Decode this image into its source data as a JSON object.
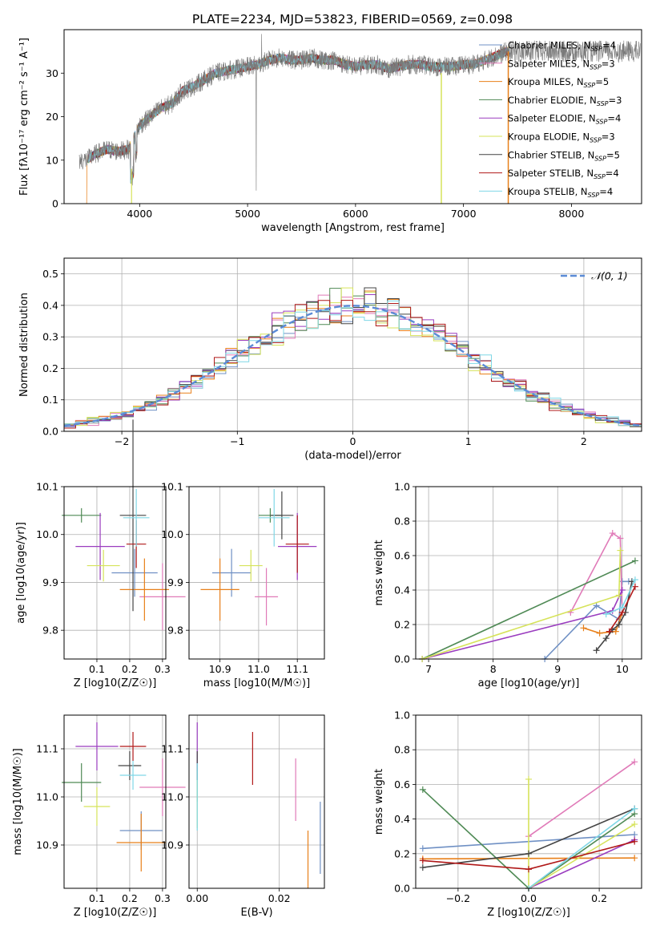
{
  "figure": {
    "title": "PLATE=2234, MJD=53823, FIBERID=0569, z=0.098"
  },
  "series_styles": [
    {
      "name": "Chabrier MILES",
      "nssp": "4",
      "color": "#6f90c4"
    },
    {
      "name": "Salpeter MILES",
      "nssp": "3",
      "color": "#e07ab8"
    },
    {
      "name": "Kroupa MILES",
      "nssp": "5",
      "color": "#e8801a"
    },
    {
      "name": "Chabrier ELODIE",
      "nssp": "3",
      "color": "#4f8a55"
    },
    {
      "name": "Salpeter ELODIE",
      "nssp": "4",
      "color": "#9a3cbf"
    },
    {
      "name": "Kroupa ELODIE",
      "nssp": "3",
      "color": "#d6e35a"
    },
    {
      "name": "Chabrier STELIB",
      "nssp": "5",
      "color": "#444444"
    },
    {
      "name": "Salpeter STELIB",
      "nssp": "4",
      "color": "#b01818"
    },
    {
      "name": "Kroupa STELIB",
      "nssp": "4",
      "color": "#7fd7e6"
    }
  ],
  "chart_data": [
    {
      "id": "spectrum",
      "type": "line",
      "xlabel": "wavelength [Angstrom, rest frame]",
      "ylabel": "Flux [fλ10⁻¹⁷ erg cm⁻² s⁻¹ A⁻¹]",
      "xlim": [
        3300,
        8650
      ],
      "ylim": [
        0,
        40
      ],
      "xticks": [
        4000,
        5000,
        6000,
        7000,
        8000
      ],
      "yticks": [
        0,
        10,
        20,
        30
      ],
      "legend_position": "top-right",
      "observed_flux": {
        "x": [
          3500,
          3600,
          3700,
          3800,
          3900,
          4000,
          4100,
          4200,
          4300,
          4400,
          4500,
          4600,
          4700,
          4800,
          4900,
          5000,
          5100,
          5200,
          5300,
          5400,
          5500,
          5600,
          5700,
          5800,
          5900,
          6000,
          6100,
          6200,
          6300,
          6400,
          6500,
          6600,
          6700,
          6800,
          6900,
          7000,
          7100,
          7200,
          7300,
          7400
        ],
        "y": [
          10,
          11.5,
          12.5,
          12,
          12.5,
          18,
          20,
          22,
          23,
          26,
          27,
          28.5,
          30,
          30.5,
          31,
          31.5,
          32,
          33,
          33.5,
          33,
          33,
          33.5,
          33,
          33,
          32,
          31.5,
          32,
          32,
          31,
          31.5,
          32,
          32,
          31.5,
          31.5,
          31.5,
          32,
          32,
          33,
          34,
          35
        ]
      }
    },
    {
      "id": "residuals",
      "type": "bar",
      "xlabel": "(data-model)/error",
      "ylabel": "Normed distribution",
      "xlim": [
        -2.5,
        2.5
      ],
      "ylim": [
        0,
        0.55
      ],
      "xticks": [
        -2,
        -1,
        0,
        1,
        2
      ],
      "yticks": [
        0,
        0.1,
        0.2,
        0.3,
        0.4,
        0.5
      ],
      "legend": "𝒩(0, 1)",
      "legend_position": "top-right",
      "bin_edges_start": -2.5,
      "bin_width": 0.1,
      "normal_curve": {
        "mean": 0,
        "sigma": 1
      }
    },
    {
      "id": "age-vs-metallicity",
      "type": "scatter",
      "xlabel": "Z [log10(Z/Z☉)]",
      "ylabel": "age  [log10(age/yr)]",
      "xlim": [
        0,
        0.31
      ],
      "ylim": [
        9.74,
        10.1
      ],
      "xticks": [
        0.1,
        0.2,
        0.3
      ],
      "yticks": [
        9.8,
        9.9,
        10.0,
        10.1
      ],
      "points": [
        {
          "series": "Chabrier MILES",
          "x": 0.215,
          "y": 9.92,
          "xerr": 0.07,
          "yerr": 0.05
        },
        {
          "series": "Salpeter MILES",
          "x": 0.3,
          "y": 9.87,
          "xerr": 0.07,
          "yerr": 0.07
        },
        {
          "series": "Kroupa MILES",
          "x": 0.245,
          "y": 9.885,
          "xerr": 0.075,
          "yerr": 0.065
        },
        {
          "series": "Chabrier ELODIE",
          "x": 0.053,
          "y": 10.04,
          "xerr": 0.06,
          "yerr": 0.015
        },
        {
          "series": "Salpeter ELODIE",
          "x": 0.11,
          "y": 9.975,
          "xerr": 0.075,
          "yerr": 0.07
        },
        {
          "series": "Kroupa ELODIE",
          "x": 0.12,
          "y": 9.935,
          "xerr": 0.05,
          "yerr": 0.033
        },
        {
          "series": "Chabrier STELIB",
          "x": 0.21,
          "y": 10.04,
          "xerr": 0.04,
          "yerr": 0.2
        },
        {
          "series": "Salpeter STELIB",
          "x": 0.22,
          "y": 9.98,
          "xerr": 0.03,
          "yerr": 0.05
        },
        {
          "series": "Kroupa STELIB",
          "x": 0.22,
          "y": 10.035,
          "xerr": 0.04,
          "yerr": 0.06
        }
      ]
    },
    {
      "id": "age-vs-mass",
      "type": "scatter",
      "xlabel": "mass [log10(M/M☉)]",
      "ylabel": "",
      "xlim": [
        10.82,
        11.17
      ],
      "ylim": [
        9.74,
        10.1
      ],
      "xticks": [
        10.9,
        11.0,
        11.1
      ],
      "yticks": [
        9.8,
        9.9,
        10.0,
        10.1
      ],
      "points": [
        {
          "series": "Chabrier MILES",
          "x": 10.93,
          "y": 9.92,
          "xerr": 0.05,
          "yerr": 0.05
        },
        {
          "series": "Salpeter MILES",
          "x": 11.02,
          "y": 9.87,
          "xerr": 0.03,
          "yerr": 0.06
        },
        {
          "series": "Kroupa MILES",
          "x": 10.9,
          "y": 9.885,
          "xerr": 0.05,
          "yerr": 0.065
        },
        {
          "series": "Chabrier ELODIE",
          "x": 11.03,
          "y": 10.04,
          "xerr": 0.03,
          "yerr": 0.015
        },
        {
          "series": "Salpeter ELODIE",
          "x": 11.1,
          "y": 9.975,
          "xerr": 0.05,
          "yerr": 0.07
        },
        {
          "series": "Kroupa ELODIE",
          "x": 10.98,
          "y": 9.935,
          "xerr": 0.03,
          "yerr": 0.033
        },
        {
          "series": "Chabrier STELIB",
          "x": 11.06,
          "y": 10.04,
          "xerr": 0.03,
          "yerr": 0.05
        },
        {
          "series": "Salpeter STELIB",
          "x": 11.1,
          "y": 9.98,
          "xerr": 0.03,
          "yerr": 0.06
        },
        {
          "series": "Kroupa STELIB",
          "x": 11.04,
          "y": 10.035,
          "xerr": 0.04,
          "yerr": 0.06
        }
      ]
    },
    {
      "id": "mass-weight-vs-age",
      "type": "line",
      "xlabel": "age  [log10(age/yr)]",
      "ylabel": "mass weight",
      "xlim": [
        6.8,
        10.3
      ],
      "ylim": [
        0,
        1.0
      ],
      "xticks": [
        7,
        8,
        9,
        10
      ],
      "yticks": [
        0.0,
        0.2,
        0.4,
        0.6,
        0.8,
        1.0
      ],
      "lines": [
        {
          "series": "Chabrier MILES",
          "x": [
            8.8,
            9.6,
            9.95,
            10.0,
            10.1
          ],
          "y": [
            0.0,
            0.31,
            0.23,
            0.45,
            0.45
          ]
        },
        {
          "series": "Salpeter MILES",
          "x": [
            9.2,
            9.85,
            9.97,
            10.0
          ],
          "y": [
            0.27,
            0.73,
            0.7,
            0.27
          ]
        },
        {
          "series": "Kroupa MILES",
          "x": [
            9.4,
            9.65,
            9.9,
            10.0
          ],
          "y": [
            0.18,
            0.15,
            0.16,
            0.27
          ]
        },
        {
          "series": "Chabrier ELODIE",
          "x": [
            6.9,
            10.2
          ],
          "y": [
            0.0,
            0.57
          ]
        },
        {
          "series": "Salpeter ELODIE",
          "x": [
            6.9,
            9.85,
            10.0
          ],
          "y": [
            0.0,
            0.28,
            0.4
          ]
        },
        {
          "series": "Kroupa ELODIE",
          "x": [
            6.9,
            9.95,
            9.97
          ],
          "y": [
            0.0,
            0.37,
            0.63
          ]
        },
        {
          "series": "Chabrier STELIB",
          "x": [
            9.6,
            9.75,
            9.85,
            9.95,
            10.05,
            10.15
          ],
          "y": [
            0.05,
            0.12,
            0.17,
            0.2,
            0.27,
            0.45
          ]
        },
        {
          "series": "Salpeter STELIB",
          "x": [
            9.8,
            10.0,
            10.2
          ],
          "y": [
            0.16,
            0.27,
            0.42
          ]
        },
        {
          "series": "Kroupa STELIB",
          "x": [
            9.75,
            10.0,
            10.2
          ],
          "y": [
            0.26,
            0.3,
            0.46
          ]
        }
      ]
    },
    {
      "id": "mass-vs-metallicity",
      "type": "scatter",
      "xlabel": "Z [log10(Z/Z☉)]",
      "ylabel": "mass [log10(M/M☉)]",
      "xlim": [
        0,
        0.31
      ],
      "ylim": [
        10.81,
        11.17
      ],
      "xticks": [
        0.1,
        0.2,
        0.3
      ],
      "yticks": [
        10.9,
        11.0,
        11.1
      ],
      "points": [
        {
          "series": "Chabrier MILES",
          "x": 0.235,
          "y": 10.93,
          "xerr": 0.065,
          "yerr": 0.04
        },
        {
          "series": "Salpeter MILES",
          "x": 0.3,
          "y": 11.02,
          "xerr": 0.07,
          "yerr": 0.06
        },
        {
          "series": "Kroupa MILES",
          "x": 0.235,
          "y": 10.905,
          "xerr": 0.075,
          "yerr": 0.06
        },
        {
          "series": "Chabrier ELODIE",
          "x": 0.053,
          "y": 11.03,
          "xerr": 0.06,
          "yerr": 0.04
        },
        {
          "series": "Salpeter ELODIE",
          "x": 0.1,
          "y": 11.105,
          "xerr": 0.065,
          "yerr": 0.05
        },
        {
          "series": "Kroupa ELODIE",
          "x": 0.1,
          "y": 10.98,
          "xerr": 0.04,
          "yerr": 0.04
        },
        {
          "series": "Chabrier STELIB",
          "x": 0.2,
          "y": 11.065,
          "xerr": 0.035,
          "yerr": 0.03
        },
        {
          "series": "Salpeter STELIB",
          "x": 0.21,
          "y": 11.105,
          "xerr": 0.04,
          "yerr": 0.03
        },
        {
          "series": "Kroupa STELIB",
          "x": 0.21,
          "y": 11.045,
          "xerr": 0.04,
          "yerr": 0.03
        }
      ]
    },
    {
      "id": "mass-vs-ebv",
      "type": "scatter",
      "xlabel": "E(B-V)",
      "ylabel": "",
      "xlim": [
        -0.002,
        0.031
      ],
      "ylim": [
        10.81,
        11.17
      ],
      "xticks": [
        0.0,
        0.02
      ],
      "yticks": [
        10.9,
        11.0,
        11.1
      ],
      "points": [
        {
          "series": "Chabrier MILES",
          "x": 0.03,
          "y": 10.915,
          "yerr": 0.075
        },
        {
          "series": "Salpeter MILES",
          "x": 0.024,
          "y": 11.015,
          "yerr": 0.065
        },
        {
          "series": "Kroupa MILES",
          "x": 0.027,
          "y": 10.87,
          "yerr": 0.06
        },
        {
          "series": "Chabrier ELODIE",
          "x": 0.0,
          "y": 11.03,
          "yerr": 0.04
        },
        {
          "series": "Salpeter ELODIE",
          "x": 0.0,
          "y": 11.105,
          "yerr": 0.05
        },
        {
          "series": "Kroupa ELODIE",
          "x": 0.0,
          "y": 10.985,
          "yerr": 0.05
        },
        {
          "series": "Chabrier STELIB",
          "x": 0.0,
          "y": 11.065,
          "yerr": 0.03
        },
        {
          "series": "Salpeter STELIB",
          "x": 0.0135,
          "y": 11.08,
          "yerr": 0.055
        },
        {
          "series": "Kroupa STELIB",
          "x": 0.0,
          "y": 11.0,
          "yerr": 0.07
        }
      ]
    },
    {
      "id": "mass-weight-vs-metallicity",
      "type": "line",
      "xlabel": "Z [log10(Z/Z☉)]",
      "ylabel": "mass weight",
      "xlim": [
        -0.32,
        0.32
      ],
      "ylim": [
        0,
        1.0
      ],
      "xticks": [
        -0.2,
        0.0,
        0.2
      ],
      "yticks": [
        0.0,
        0.2,
        0.4,
        0.6,
        0.8,
        1.0
      ],
      "lines": [
        {
          "series": "Chabrier MILES",
          "x": [
            -0.3,
            0.3
          ],
          "y": [
            0.23,
            0.31
          ]
        },
        {
          "series": "Salpeter MILES",
          "x": [
            0.0,
            0.3
          ],
          "y": [
            0.3,
            0.73
          ]
        },
        {
          "series": "Kroupa MILES",
          "x": [
            -0.3,
            0.3
          ],
          "y": [
            0.17,
            0.175
          ]
        },
        {
          "series": "Chabrier ELODIE",
          "x": [
            -0.3,
            0.0,
            0.3
          ],
          "y": [
            0.57,
            0.0,
            0.43
          ]
        },
        {
          "series": "Salpeter ELODIE",
          "x": [
            0.0,
            0.3
          ],
          "y": [
            0.0,
            0.28
          ]
        },
        {
          "series": "Kroupa ELODIE",
          "x": [
            0.0,
            0.0,
            0.3
          ],
          "y": [
            0.63,
            0.0,
            0.37
          ]
        },
        {
          "series": "Chabrier STELIB",
          "x": [
            -0.3,
            0.0,
            0.3
          ],
          "y": [
            0.12,
            0.2,
            0.46
          ]
        },
        {
          "series": "Salpeter STELIB",
          "x": [
            -0.3,
            0.0,
            0.3
          ],
          "y": [
            0.16,
            0.11,
            0.27
          ]
        },
        {
          "series": "Kroupa STELIB",
          "x": [
            0.0,
            0.3
          ],
          "y": [
            0.0,
            0.46
          ]
        }
      ]
    }
  ]
}
